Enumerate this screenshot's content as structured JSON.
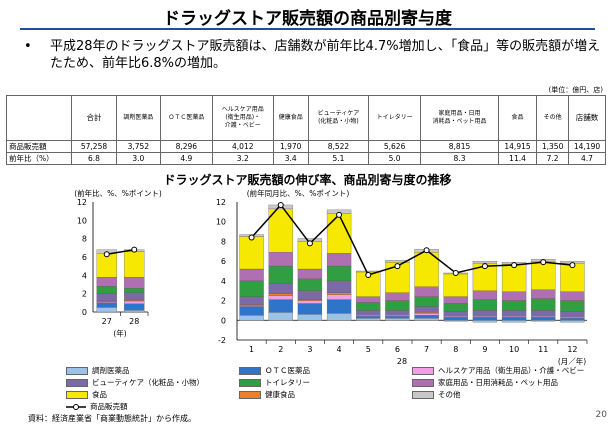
{
  "title": "ドラッグストア販売額の商品別寄与度",
  "bullet": "平成28年のドラッグストア販売額は、店舗数が前年比4.7%増加し、「食品」等の販売額が増えたため、前年比6.8%の増加。",
  "bullet_mark": "•",
  "table": {
    "unit": "(単位：億円、店)",
    "headers": [
      "合計",
      "調剤医薬品",
      "ＯＴＣ医薬品",
      "ヘルスケア用品\n(衛生用品)・\n介護・ベビー",
      "健康食品",
      "ビューティケア\n(化粧品・小物)",
      "トイレタリー",
      "家庭用品・日用\n消耗品・ペット用品",
      "食品",
      "その他",
      "店舗数"
    ],
    "rows": [
      {
        "label": "商品販売額",
        "values": [
          "57,258",
          "3,752",
          "8,296",
          "4,012",
          "1,970",
          "8,522",
          "5,626",
          "8,815",
          "14,915",
          "1,350",
          "14,190"
        ]
      },
      {
        "label": "前年比（%）",
        "values": [
          "6.8",
          "3.0",
          "4.9",
          "3.2",
          "3.4",
          "5.1",
          "5.0",
          "8.3",
          "11.4",
          "7.2",
          "4.7"
        ]
      }
    ]
  },
  "chart_title": "ドラッグストア販売額の伸び率、商品別寄与度の推移",
  "chart_data": [
    {
      "type": "bar",
      "ylabel": "(前年比、%、%ポイント)",
      "ylim": [
        0,
        12
      ],
      "yticks": [
        "0",
        "2",
        "4",
        "6",
        "8",
        "10",
        "12"
      ],
      "categories": [
        "27",
        "28"
      ],
      "xunit": "(年)",
      "series": [
        {
          "name": "調剤医薬品",
          "color": "#9cc3e6",
          "values": [
            0.5,
            0.2
          ]
        },
        {
          "name": "ＯＴＣ医薬品",
          "color": "#2e74c8",
          "values": [
            0.5,
            0.7
          ]
        },
        {
          "name": "ヘルスケア用品（衛生用品）・介護・ベビー",
          "color": "#f2a0e6",
          "values": [
            0.1,
            0.3
          ]
        },
        {
          "name": "健康食品",
          "color": "#f07f2b",
          "values": [
            0.1,
            0.1
          ]
        },
        {
          "name": "ビューティケア（化粧品・小物）",
          "color": "#7c6aa6",
          "values": [
            0.8,
            0.8
          ]
        },
        {
          "name": "トイレタリー",
          "color": "#2f9f41",
          "values": [
            0.8,
            0.5
          ]
        },
        {
          "name": "家庭用品・日用消耗品・ペット用品",
          "color": "#b06fb0",
          "values": [
            1.0,
            1.2
          ]
        },
        {
          "name": "食品",
          "color": "#f6e800",
          "values": [
            2.6,
            2.8
          ]
        },
        {
          "name": "その他",
          "color": "#c8c8c8",
          "values": [
            0.4,
            0.2
          ]
        }
      ],
      "line": {
        "name": "商品販売額",
        "values": [
          6.3,
          6.8
        ]
      }
    },
    {
      "type": "bar",
      "ylabel": "(前年同月比、%、%ポイント)",
      "ylim": [
        -2,
        12
      ],
      "yticks": [
        "-2",
        "0",
        "2",
        "4",
        "6",
        "8",
        "10",
        "12"
      ],
      "categories": [
        "1",
        "2",
        "3",
        "4",
        "5",
        "6",
        "7",
        "8",
        "9",
        "10",
        "11",
        "12"
      ],
      "year_label": "28",
      "xunit": "(月／年)",
      "series": [
        {
          "name": "調剤医薬品",
          "color": "#9cc3e6",
          "values": [
            0.5,
            0.8,
            0.6,
            0.7,
            0.2,
            0.2,
            0.2,
            -0.1,
            -0.2,
            -0.2,
            -0.1,
            -0.2
          ]
        },
        {
          "name": "ＯＴＣ医薬品",
          "color": "#2e74c8",
          "values": [
            0.9,
            1.3,
            1.1,
            1.4,
            0.2,
            0.2,
            0.3,
            0.3,
            0.3,
            0.3,
            0.3,
            0.2
          ]
        },
        {
          "name": "ヘルスケア用品（衛生用品）・介護・ベビー",
          "color": "#f2a0e6",
          "values": [
            0.1,
            0.4,
            0.3,
            0.5,
            0.1,
            0.1,
            0.2,
            0.1,
            0.1,
            0.1,
            0.1,
            0.1
          ]
        },
        {
          "name": "健康食品",
          "color": "#f07f2b",
          "values": [
            0.1,
            0.2,
            0.1,
            0.2,
            0.0,
            0.0,
            0.1,
            0.0,
            0.0,
            0.0,
            0.0,
            0.0
          ]
        },
        {
          "name": "ビューティケア（化粧品・小物）",
          "color": "#7c6aa6",
          "values": [
            0.8,
            1.0,
            0.9,
            1.2,
            0.5,
            0.5,
            0.6,
            0.5,
            0.6,
            0.6,
            0.6,
            0.6
          ]
        },
        {
          "name": "トイレタリー",
          "color": "#2f9f41",
          "values": [
            1.6,
            1.8,
            1.2,
            1.5,
            0.8,
            1.0,
            1.0,
            0.8,
            1.1,
            1.0,
            1.2,
            1.1
          ]
        },
        {
          "name": "家庭用品・日用消耗品・ペット用品",
          "color": "#b06fb0",
          "values": [
            1.2,
            1.4,
            1.0,
            1.3,
            0.6,
            0.8,
            1.0,
            0.7,
            0.9,
            0.9,
            0.9,
            0.9
          ]
        },
        {
          "name": "食品",
          "color": "#f6e800",
          "values": [
            3.3,
            4.4,
            2.8,
            4.0,
            2.5,
            3.1,
            3.5,
            2.3,
            2.8,
            2.8,
            2.9,
            2.9
          ]
        },
        {
          "name": "その他",
          "color": "#c8c8c8",
          "values": [
            0.2,
            0.4,
            0.3,
            0.4,
            0.1,
            0.2,
            0.3,
            0.1,
            0.2,
            0.2,
            0.2,
            0.2
          ]
        }
      ],
      "line": {
        "name": "商品販売額",
        "values": [
          8.4,
          11.7,
          7.8,
          10.7,
          4.6,
          5.5,
          7.1,
          4.8,
          5.5,
          5.6,
          5.9,
          5.6
        ]
      }
    }
  ],
  "legend": [
    {
      "label": "調剤医薬品",
      "color": "#9cc3e6",
      "kind": "box"
    },
    {
      "label": "ＯＴＣ医薬品",
      "color": "#2e74c8",
      "kind": "box"
    },
    {
      "label": "ヘルスケア用品（衛生用品）・介護・ベビー",
      "color": "#f2a0e6",
      "kind": "box"
    },
    {
      "label": "ビューティケア（化粧品・小物）",
      "color": "#7c6aa6",
      "kind": "box"
    },
    {
      "label": "トイレタリー",
      "color": "#2f9f41",
      "kind": "box"
    },
    {
      "label": "家庭用品・日用消耗品・ペット用品",
      "color": "#b06fb0",
      "kind": "box"
    },
    {
      "label": "食品",
      "color": "#f6e800",
      "kind": "box"
    },
    {
      "label": "健康食品",
      "color": "#f07f2b",
      "kind": "box"
    },
    {
      "label": "その他",
      "color": "#c8c8c8",
      "kind": "box"
    },
    {
      "label": "商品販売額",
      "color": "#000000",
      "kind": "line"
    }
  ],
  "source": "資料：経済産業省「商業動態統計」から作成。",
  "page_number": "20"
}
